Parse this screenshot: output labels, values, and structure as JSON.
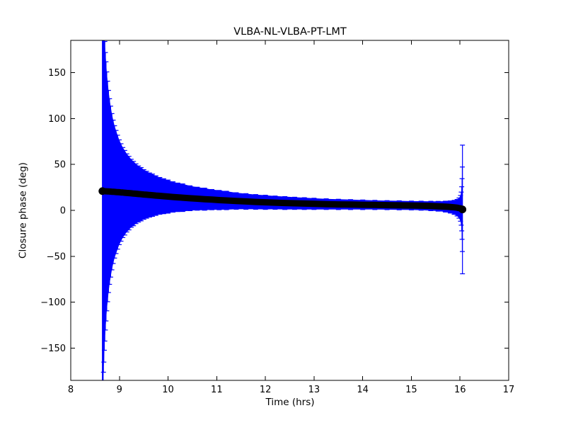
{
  "window": {
    "background": "#ffffff"
  },
  "chart_data": {
    "type": "errorbar",
    "title": "VLBA-NL-VLBA-PT-LMT",
    "xlabel": "Time (hrs)",
    "ylabel": "Closure phase (deg)",
    "xlim": [
      8,
      17
    ],
    "ylim": [
      -185,
      185
    ],
    "xticks": [
      8,
      9,
      10,
      11,
      12,
      13,
      14,
      15,
      16,
      17
    ],
    "yticks": [
      -150,
      -100,
      -50,
      0,
      50,
      100,
      150
    ],
    "grid": false,
    "legend": "none",
    "colors": {
      "errorbar": "#0000ff",
      "marker": "#000000",
      "axes": "#000000",
      "background": "#ffffff"
    },
    "series": [
      {
        "name": "closure-phase",
        "marker": "circle",
        "t": [
          8.65,
          8.655,
          8.66,
          8.666,
          8.672,
          8.68,
          8.69,
          8.7,
          8.712,
          8.725,
          8.74,
          8.757,
          8.776,
          8.797,
          8.82,
          8.845,
          8.872,
          8.9,
          8.93,
          8.962,
          8.996,
          9.032,
          9.07,
          9.11,
          9.152,
          9.196,
          9.242,
          9.29,
          9.34,
          9.392,
          9.446,
          9.502,
          9.56,
          9.62,
          9.68,
          9.75,
          9.83,
          9.91,
          10.0,
          10.1,
          10.2,
          10.3,
          10.45,
          10.6,
          10.75,
          10.9,
          11.05,
          11.2,
          11.4,
          11.6,
          11.8,
          12.0,
          12.2,
          12.4,
          12.6,
          12.8,
          13.0,
          13.25,
          13.5,
          13.75,
          14.0,
          14.25,
          14.5,
          14.75,
          15.0,
          15.2,
          15.4,
          15.55,
          15.7,
          15.8,
          15.88,
          15.94,
          15.98,
          16.01,
          16.025,
          16.035,
          16.042,
          16.047,
          16.05
        ],
        "phase": [
          21.0,
          21.0,
          21.0,
          20.9,
          20.9,
          20.9,
          20.8,
          20.8,
          20.8,
          20.7,
          20.7,
          20.6,
          20.6,
          20.5,
          20.4,
          20.3,
          20.2,
          20.1,
          20.0,
          19.8,
          19.7,
          19.5,
          19.4,
          19.2,
          19.0,
          18.8,
          18.6,
          18.3,
          18.1,
          17.8,
          17.6,
          17.3,
          17.0,
          16.7,
          16.5,
          16.1,
          15.8,
          15.4,
          15.0,
          14.6,
          14.2,
          13.8,
          13.2,
          12.7,
          12.2,
          11.7,
          11.2,
          10.8,
          10.2,
          9.7,
          9.2,
          8.8,
          8.4,
          8.0,
          7.7,
          7.4,
          7.1,
          6.8,
          6.5,
          6.3,
          6.1,
          5.9,
          5.7,
          5.5,
          5.3,
          5.1,
          4.8,
          4.5,
          4.1,
          3.7,
          3.3,
          2.9,
          2.5,
          2.2,
          1.9,
          1.7,
          1.5,
          1.2,
          1.0
        ],
        "err": [
          236,
          226,
          217,
          206,
          197,
          186,
          173,
          163,
          151,
          141,
          130,
          120,
          110,
          101,
          93,
          85,
          78,
          72,
          67,
          62,
          57,
          53,
          49,
          46,
          42.5,
          40,
          37,
          35,
          32.5,
          30.5,
          29,
          27,
          25.5,
          24,
          23,
          21.5,
          20,
          19,
          18,
          16.5,
          15.5,
          15,
          13.5,
          12.5,
          12,
          11,
          10.5,
          10,
          9,
          8.5,
          8,
          7.7,
          7.2,
          7,
          6.6,
          6.4,
          6.1,
          5.8,
          5.6,
          5.4,
          5.2,
          5.0,
          4.9,
          4.9,
          4.8,
          4.9,
          5.1,
          5.3,
          5.9,
          6.6,
          7.6,
          9,
          11,
          14,
          18,
          24,
          33,
          46,
          70
        ]
      }
    ]
  }
}
